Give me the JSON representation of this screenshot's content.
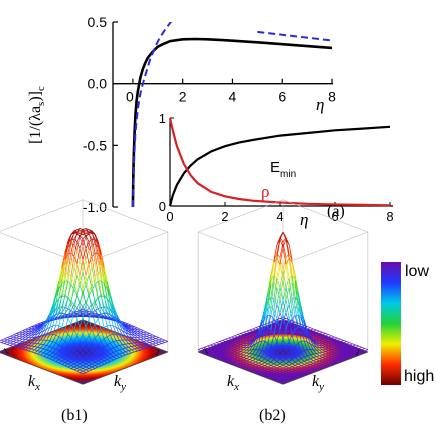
{
  "chart_data": [
    {
      "type": "line",
      "panel_label": "(a)",
      "xlabel": "η",
      "ylabel": "[1/(λa",
      "ylabel_sub_s": "s",
      "ylabel_close": ")]",
      "ylabel_sub_c": "c",
      "xlim": [
        -0.8,
        8
      ],
      "ylim": [
        -1.0,
        0.5
      ],
      "xticks": [
        0,
        2,
        4,
        6,
        8
      ],
      "xtick_labels": [
        "0",
        "2",
        "4",
        "6",
        "8"
      ],
      "yticks": [
        -1.0,
        -0.5,
        0.0,
        0.5
      ],
      "ytick_labels": [
        "-1.0",
        "-0.5",
        "0.0",
        "0.5"
      ],
      "grid": false,
      "series": [
        {
          "color": "#000000",
          "style": "solid",
          "x": [
            0.0,
            0.02,
            0.04,
            0.07,
            0.1,
            0.15,
            0.2,
            0.3,
            0.4,
            0.5,
            0.6,
            0.8,
            1.0,
            1.2,
            1.5,
            2.0,
            2.5,
            3.0,
            3.5,
            4.0,
            5.0,
            6.0,
            7.0,
            8.0
          ],
          "y": [
            -1.0,
            -0.72,
            -0.55,
            -0.38,
            -0.26,
            -0.14,
            -0.06,
            0.05,
            0.12,
            0.17,
            0.21,
            0.26,
            0.3,
            0.32,
            0.345,
            0.36,
            0.362,
            0.36,
            0.355,
            0.348,
            0.335,
            0.32,
            0.305,
            0.29
          ]
        },
        {
          "color": "#2a2ad6",
          "style": "dashed",
          "x": [
            0.0,
            0.05,
            0.1,
            0.2,
            0.3,
            0.4,
            0.5,
            0.7,
            0.9,
            1.1,
            1.3,
            1.6
          ],
          "y": [
            -1.0,
            -0.6,
            -0.4,
            -0.2,
            -0.08,
            0.0,
            0.07,
            0.2,
            0.3,
            0.38,
            0.44,
            0.52
          ]
        },
        {
          "color": "#2a2ad6",
          "style": "dashed",
          "x": [
            5.0,
            8.0
          ],
          "y": [
            0.42,
            0.35
          ]
        }
      ]
    },
    {
      "type": "line",
      "role": "inset",
      "xlabel": "η",
      "xlim": [
        0,
        8
      ],
      "ylim": [
        0,
        1
      ],
      "xticks": [
        0,
        2,
        4,
        6,
        8
      ],
      "xtick_labels": [
        "0",
        "2",
        "4",
        "6",
        "8"
      ],
      "yticks": [
        0,
        1
      ],
      "ytick_labels": [
        "0",
        "1"
      ],
      "series": [
        {
          "name": "E",
          "name_sub": "min",
          "color": "#000000",
          "x": [
            0.0,
            0.1,
            0.25,
            0.5,
            0.75,
            1.0,
            1.5,
            2.0,
            2.5,
            3.0,
            4.0,
            5.0,
            6.0,
            7.0,
            8.0
          ],
          "y": [
            0.0,
            0.12,
            0.24,
            0.37,
            0.46,
            0.53,
            0.62,
            0.68,
            0.72,
            0.75,
            0.8,
            0.83,
            0.86,
            0.88,
            0.9
          ]
        },
        {
          "name": "ρ",
          "color": "#d82020",
          "x": [
            0.0,
            0.1,
            0.25,
            0.5,
            0.75,
            1.0,
            1.5,
            2.0,
            2.5,
            3.0,
            4.0,
            5.0,
            6.0,
            7.0,
            8.0
          ],
          "y": [
            1.0,
            0.86,
            0.68,
            0.48,
            0.35,
            0.26,
            0.16,
            0.11,
            0.08,
            0.06,
            0.04,
            0.025,
            0.017,
            0.012,
            0.008
          ]
        }
      ]
    },
    {
      "type": "surface",
      "panel_label": "(b1)",
      "xlabel": "k",
      "xlabel_sub": "x",
      "ylabel": "k",
      "ylabel_sub": "y",
      "corner_tick": "1"
    },
    {
      "type": "surface",
      "panel_label": "(b2)",
      "xlabel": "k",
      "xlabel_sub": "x",
      "ylabel": "k",
      "ylabel_sub": "y",
      "corner_tick": "1"
    },
    {
      "type": "heatmap",
      "role": "colorbar",
      "top_label": "low",
      "bottom_label": "high",
      "colors": [
        "#6a0dad",
        "#1f3bff",
        "#00c8e8",
        "#22d23a",
        "#f0f000",
        "#ff2a00",
        "#6a0000"
      ]
    }
  ]
}
